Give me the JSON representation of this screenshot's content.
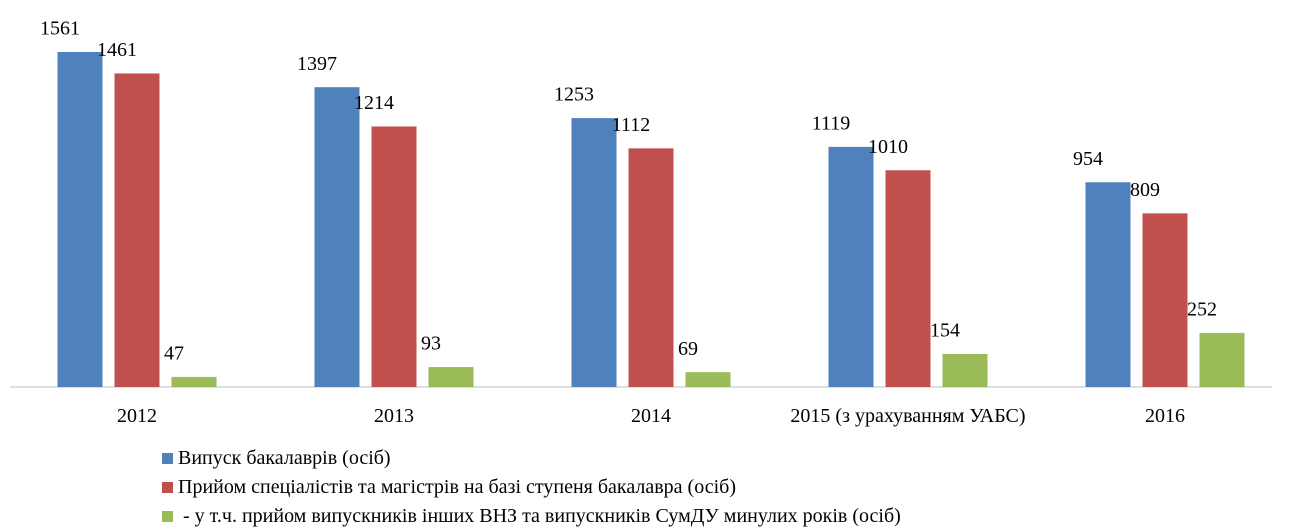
{
  "chart_data": {
    "type": "bar",
    "categories": [
      "2012",
      "2013",
      "2014",
      "2015 (з урахуванням УАБС)",
      "2016"
    ],
    "series": [
      {
        "name": "Випуск бакалаврів (осіб)",
        "color": "#4f81bd",
        "values": [
          1561,
          1397,
          1253,
          1119,
          954
        ]
      },
      {
        "name": "Прийом спеціалістів та магістрів на базі ступеня бакалавра (осіб)",
        "color": "#c0504d",
        "values": [
          1461,
          1214,
          1112,
          1010,
          809
        ]
      },
      {
        "name": " - у т.ч. прийом випускників інших ВНЗ та випускників СумДУ минулих років (осіб)",
        "color": "#9bbb59",
        "values": [
          47,
          93,
          69,
          154,
          252
        ]
      }
    ]
  }
}
